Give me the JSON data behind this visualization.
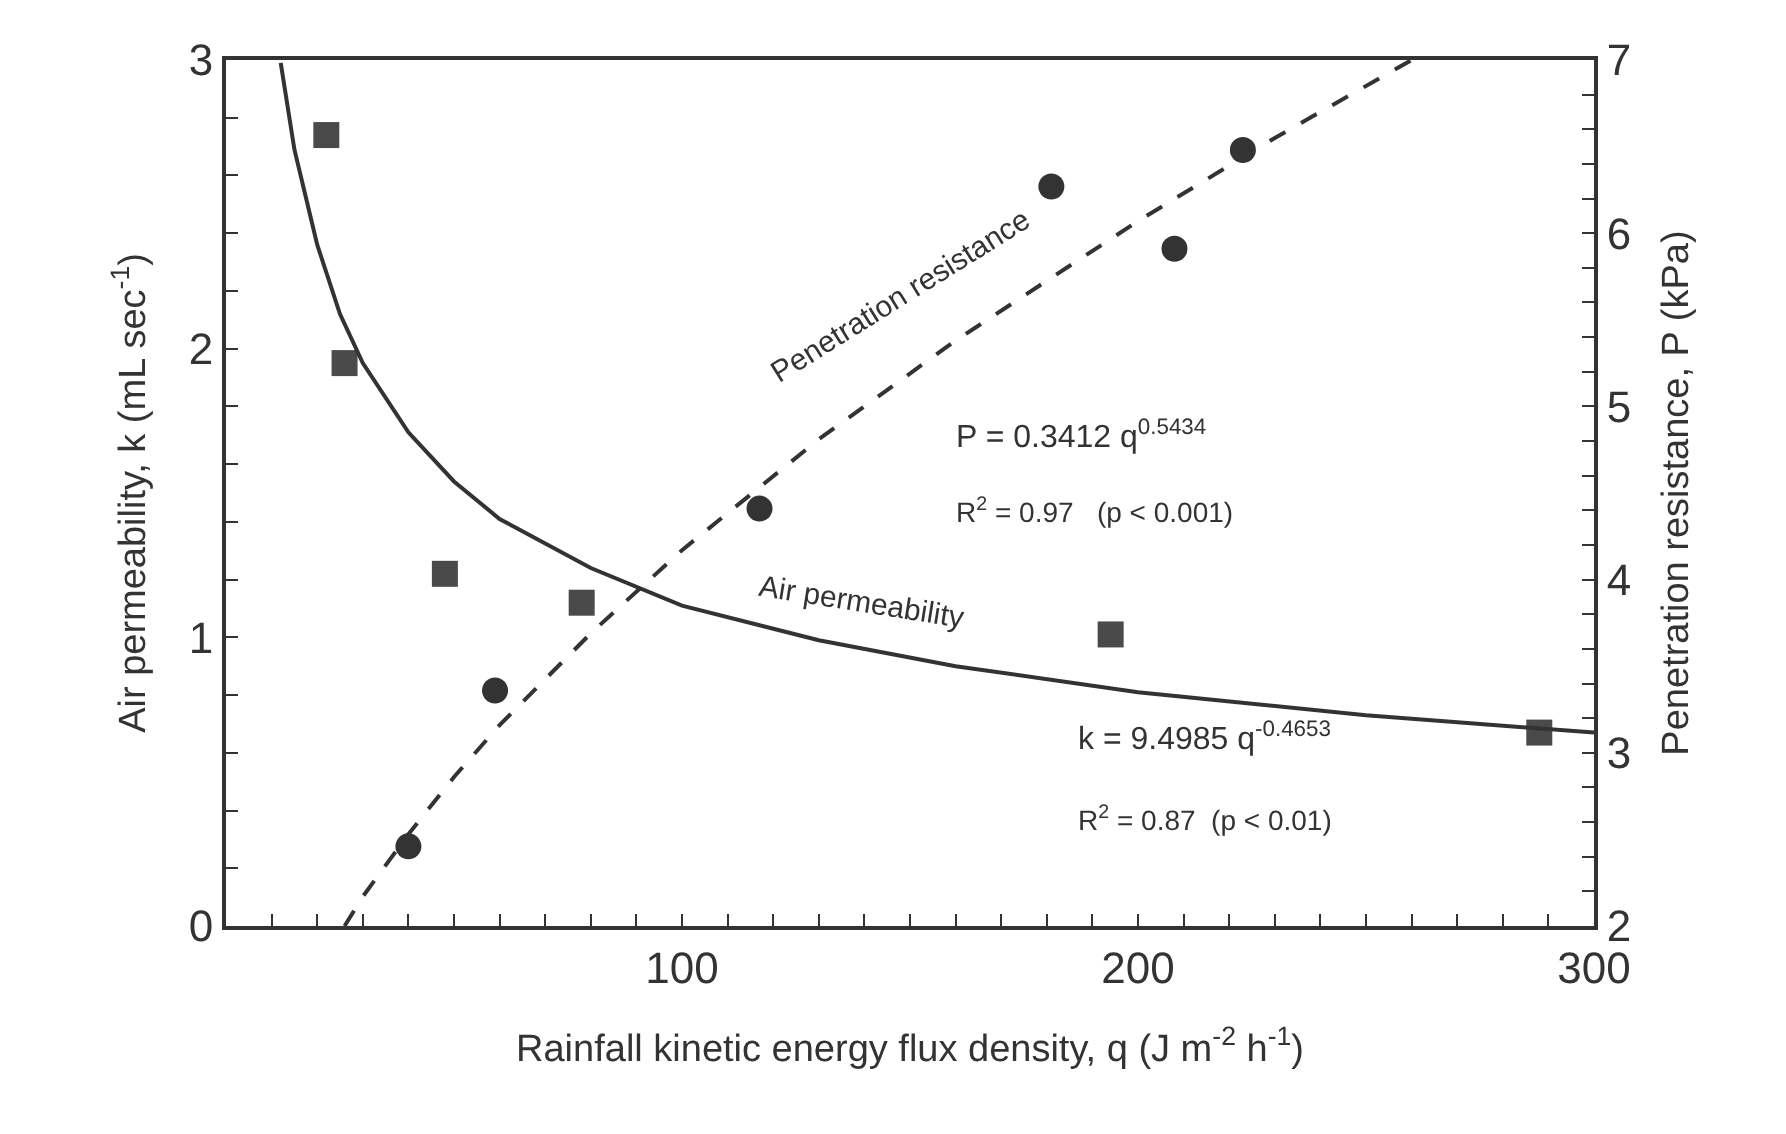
{
  "chart_data": {
    "type": "scatter",
    "xlabel": "Rainfall kinetic energy flux density, q (J m$^{-2}$ h$^{-1}$)",
    "ylabel": "Air permeability, k (mL sec$^{-1}$)",
    "y2label": "Penetration resistance, P (kPa)",
    "xlim": [
      0,
      300
    ],
    "ylim": [
      0,
      3
    ],
    "y2lim": [
      2,
      7
    ],
    "xticks": [
      {
        "value": 10,
        "label": null
      },
      {
        "value": 20,
        "label": null
      },
      {
        "value": 30,
        "label": null
      },
      {
        "value": 40,
        "label": null
      },
      {
        "value": 50,
        "label": null
      },
      {
        "value": 60,
        "label": null
      },
      {
        "value": 70,
        "label": null
      },
      {
        "value": 80,
        "label": null
      },
      {
        "value": 90,
        "label": null
      },
      100,
      {
        "value": 110,
        "label": null
      },
      {
        "value": 120,
        "label": null
      },
      {
        "value": 130,
        "label": null
      },
      {
        "value": 140,
        "label": null
      },
      {
        "value": 150,
        "label": null
      },
      {
        "value": 160,
        "label": null
      },
      {
        "value": 170,
        "label": null
      },
      {
        "value": 180,
        "label": null
      },
      {
        "value": 190,
        "label": null
      },
      200,
      {
        "value": 210,
        "label": null
      },
      {
        "value": 220,
        "label": null
      },
      {
        "value": 230,
        "label": null
      },
      {
        "value": 240,
        "label": null
      },
      {
        "value": 250,
        "label": null
      },
      {
        "value": 260,
        "label": null
      },
      {
        "value": 270,
        "label": null
      },
      {
        "value": 280,
        "label": null
      },
      {
        "value": 290,
        "label": null
      },
      300
    ],
    "yticks": [
      0,
      {
        "value": 0.2,
        "label": null
      },
      {
        "value": 0.4,
        "label": null
      },
      {
        "value": 0.6,
        "label": null
      },
      {
        "value": 0.8,
        "label": null
      },
      1,
      {
        "value": 1.2,
        "label": null
      },
      {
        "value": 1.4,
        "label": null
      },
      {
        "value": 1.6,
        "label": null
      },
      {
        "value": 1.8,
        "label": null
      },
      2,
      {
        "value": 2.2,
        "label": null
      },
      {
        "value": 2.4,
        "label": null
      },
      {
        "value": 2.6,
        "label": null
      },
      {
        "value": 2.8,
        "label": null
      },
      3
    ],
    "y2ticks": [
      2,
      {
        "value": 2.2,
        "label": null
      },
      {
        "value": 2.4,
        "label": null
      },
      {
        "value": 2.6,
        "label": null
      },
      {
        "value": 2.8,
        "label": null
      },
      3,
      {
        "value": 3.2,
        "label": null
      },
      {
        "value": 3.4,
        "label": null
      },
      {
        "value": 3.6,
        "label": null
      },
      {
        "value": 3.8,
        "label": null
      },
      4,
      {
        "value": 4.2,
        "label": null
      },
      {
        "value": 4.4,
        "label": null
      },
      {
        "value": 4.6,
        "label": null
      },
      {
        "value": 4.8,
        "label": null
      },
      5,
      {
        "value": 5.2,
        "label": null
      },
      {
        "value": 5.4,
        "label": null
      },
      {
        "value": 5.6,
        "label": null
      },
      {
        "value": 5.8,
        "label": null
      },
      6,
      {
        "value": 6.2,
        "label": null
      },
      {
        "value": 6.4,
        "label": null
      },
      {
        "value": 6.6,
        "label": null
      },
      {
        "value": 6.8,
        "label": null
      },
      7
    ],
    "legend": false,
    "series": [
      {
        "marker": "square",
        "color": "#4a4a4a",
        "x": [
          22,
          26,
          48,
          78,
          194,
          288
        ],
        "values": [
          2.74,
          1.95,
          1.22,
          1.12,
          1.01,
          0.67
        ]
      },
      {
        "marker": "circle",
        "color": "#333333",
        "axis": "y2",
        "x": [
          40,
          59,
          117,
          181,
          208,
          223
        ],
        "values": [
          2.46,
          3.36,
          4.41,
          6.27,
          5.91,
          6.48
        ]
      },
      {
        "type": "line",
        "line_style": "solid",
        "color": "#333333",
        "x": [
          12,
          15,
          20,
          25,
          30,
          40,
          50,
          60,
          80,
          100,
          130,
          160,
          200,
          250,
          300
        ],
        "values": [
          2.99,
          2.69,
          2.36,
          2.12,
          1.95,
          1.71,
          1.54,
          1.41,
          1.24,
          1.11,
          0.99,
          0.9,
          0.81,
          0.73,
          0.67
        ]
      },
      {
        "type": "line",
        "line_style": "dashed",
        "color": "#333333",
        "axis": "y2",
        "x": [
          26,
          30,
          40,
          50,
          60,
          80,
          100,
          130,
          160,
          200,
          230,
          260
        ],
        "values": [
          2.0,
          2.17,
          2.53,
          2.86,
          3.16,
          3.69,
          4.17,
          4.81,
          5.38,
          6.07,
          6.55,
          7.0
        ]
      }
    ],
    "annotations": [
      "Penetration resistance",
      "P = 0.3412 q$^{0.5434}$",
      "R$^{2}$ = 0.97   (p < 0.001)",
      "Air permeability",
      "k = 9.4985 q$^{-0.4653}$",
      "R$^{2}$ = 0.87  (p < 0.01)"
    ]
  }
}
